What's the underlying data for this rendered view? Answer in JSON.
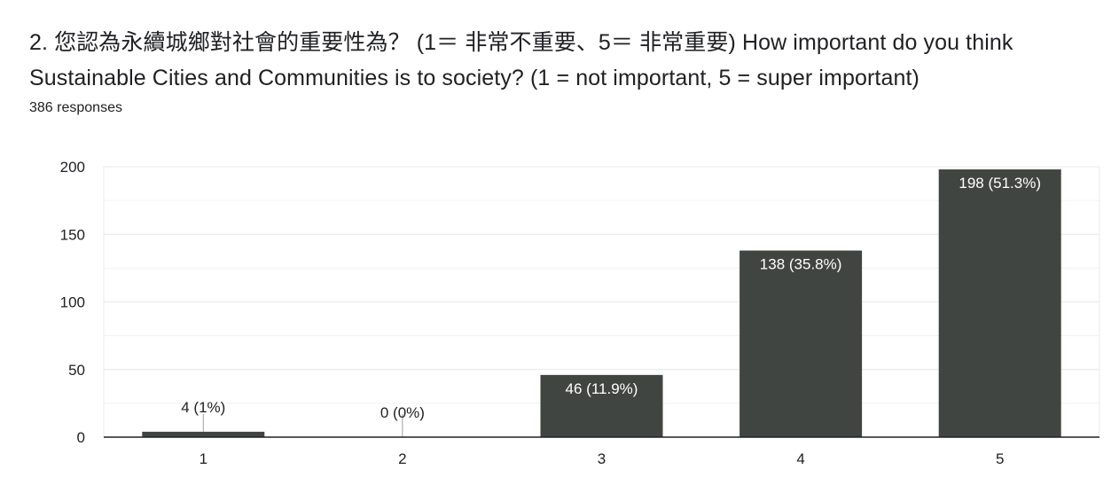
{
  "question": {
    "title": "2. 您認為永續城鄉對社會的重要性為？ (1＝ 非常不重要、5＝ 非常重要)  How important do you think Sustainable Cities and Communities is to society?  (1 = not important, 5 = super important)",
    "response_count": "386 responses"
  },
  "colors": {
    "bar": "#414541",
    "gridline": "#e8e8e8",
    "axis": "#202124",
    "label_inside": "#ffffff",
    "label_outside": "#202124"
  },
  "chart_data": {
    "type": "bar",
    "categories": [
      "1",
      "2",
      "3",
      "4",
      "5"
    ],
    "values": [
      4,
      0,
      46,
      138,
      198
    ],
    "data_labels": [
      "4 (1%)",
      "0 (0%)",
      "46 (11.9%)",
      "138 (35.8%)",
      "198 (51.3%)"
    ],
    "title": "",
    "xlabel": "",
    "ylabel": "",
    "ylim": [
      0,
      200
    ],
    "yticks": [
      0,
      50,
      100,
      150,
      200
    ],
    "grid": true,
    "legend": "none"
  }
}
